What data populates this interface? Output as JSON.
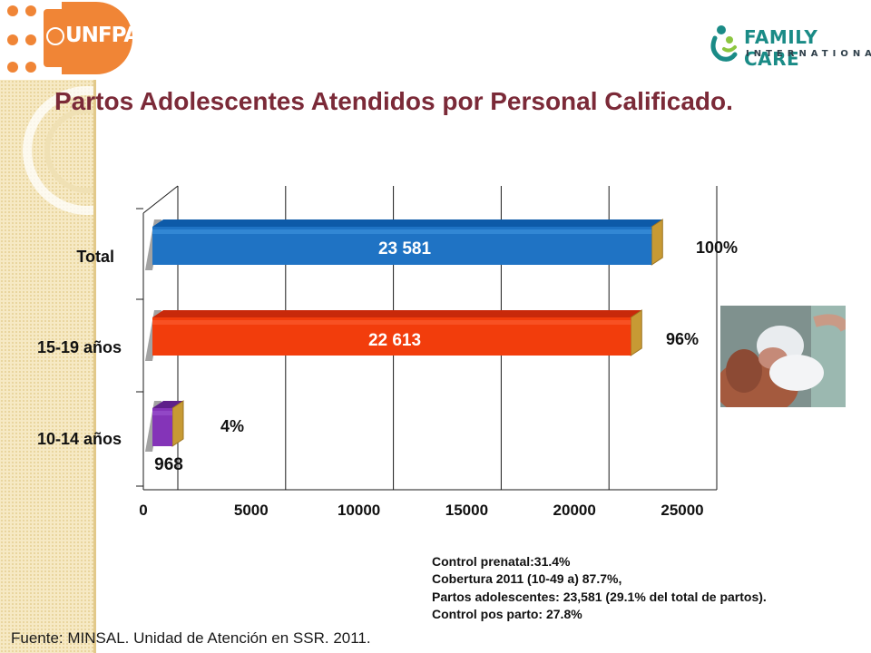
{
  "header": {
    "left_logo_text": "UNFPA",
    "right_logo_name": "FAMILY CARE",
    "right_logo_sub": "INTERNATIONAL"
  },
  "slide_title": "Partos  Adolescentes  Atendidos  por Personal Calificado.",
  "chart_data": {
    "type": "bar",
    "orientation": "horizontal",
    "categories": [
      "Total",
      "15-19 años",
      "10-14 años"
    ],
    "values": [
      23581,
      22613,
      968
    ],
    "value_labels": [
      "23 581",
      "22 613",
      "968"
    ],
    "percent_labels": [
      "100%",
      "96%",
      "4%"
    ],
    "colors": [
      "#1f73c4",
      "#f23d0c",
      "#8434b8"
    ],
    "xticks": [
      "0",
      "5000",
      "10000",
      "15000",
      "20000",
      "25000"
    ],
    "xlim": [
      0,
      25000
    ],
    "grid": true,
    "legend": "none",
    "three_d": true
  },
  "photo": {
    "icon": "mother-newborn-photo"
  },
  "notes": [
    "Control prenatal:31.4%",
    "Cobertura  2011 (10-49 a) 87.7%,",
    "Partos adolescentes: 23,581 (29.1% del total de partos).",
    "Control pos parto: 27.8%"
  ],
  "source": "Fuente: MINSAL. Unidad de Atención en SSR. 2011."
}
